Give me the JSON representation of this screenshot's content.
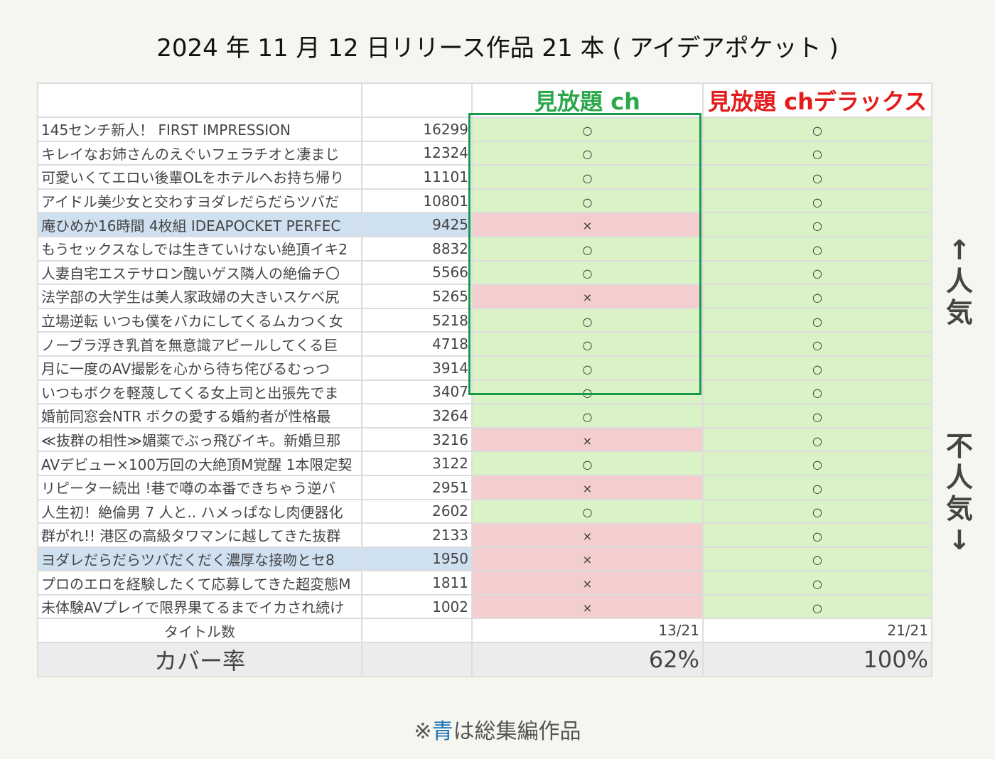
{
  "title": "2024 年 11 月 12 日リリース作品 21 本 ( アイデアポケット )",
  "columns": {
    "ch": "見放題 ch",
    "deluxe": "見放題 chデラックス"
  },
  "rows": [
    {
      "title": "145センチ新人！ FIRST IMPRESSION",
      "count": "16299",
      "ch": "○",
      "deluxe": "○",
      "highlight": false
    },
    {
      "title": "キレイなお姉さんのえぐいフェラチオと凄まじ",
      "count": "12324",
      "ch": "○",
      "deluxe": "○",
      "highlight": false
    },
    {
      "title": "可愛いくてエロい後輩OLをホテルへお持ち帰り",
      "count": "11101",
      "ch": "○",
      "deluxe": "○",
      "highlight": false
    },
    {
      "title": "アイドル美少女と交わすヨダレだらだらツバだ",
      "count": "10801",
      "ch": "○",
      "deluxe": "○",
      "highlight": false
    },
    {
      "title": "庵ひめか16時間 4枚組 IDEAPOCKET PERFEC",
      "count": "9425",
      "ch": "×",
      "deluxe": "○",
      "highlight": true
    },
    {
      "title": "もうセックスなしでは生きていけない絶頂イキ2",
      "count": "8832",
      "ch": "○",
      "deluxe": "○",
      "highlight": false
    },
    {
      "title": "人妻自宅エステサロン醜いゲス隣人の絶倫チ〇",
      "count": "5566",
      "ch": "○",
      "deluxe": "○",
      "highlight": false
    },
    {
      "title": "法学部の大学生は美人家政婦の大きいスケベ尻",
      "count": "5265",
      "ch": "×",
      "deluxe": "○",
      "highlight": false
    },
    {
      "title": "立場逆転 いつも僕をバカにしてくるムカつく女",
      "count": "5218",
      "ch": "○",
      "deluxe": "○",
      "highlight": false
    },
    {
      "title": "ノーブラ浮き乳首を無意識アピールしてくる巨",
      "count": "4718",
      "ch": "○",
      "deluxe": "○",
      "highlight": false
    },
    {
      "title": "月に一度のAV撮影を心から待ち侘びるむっつ",
      "count": "3914",
      "ch": "○",
      "deluxe": "○",
      "highlight": false
    },
    {
      "title": "いつもボクを軽蔑してくる女上司と出張先でま",
      "count": "3407",
      "ch": "○",
      "deluxe": "○",
      "highlight": false
    },
    {
      "title": "婚前同窓会NTR ボクの愛する婚約者が性格最",
      "count": "3264",
      "ch": "○",
      "deluxe": "○",
      "highlight": false
    },
    {
      "title": "≪抜群の相性≫媚薬でぶっ飛びイキ。新婚旦那",
      "count": "3216",
      "ch": "×",
      "deluxe": "○",
      "highlight": false
    },
    {
      "title": "AVデビュー×100万回の大絶頂M覚醒 1本限定契",
      "count": "3122",
      "ch": "○",
      "deluxe": "○",
      "highlight": false
    },
    {
      "title": "リピーター続出 !巷で噂の本番できちゃう逆バ",
      "count": "2951",
      "ch": "×",
      "deluxe": "○",
      "highlight": false
    },
    {
      "title": "人生初！絶倫男 7 人と.. ハメっぱなし肉便器化",
      "count": "2602",
      "ch": "○",
      "deluxe": "○",
      "highlight": false
    },
    {
      "title": "群がれ!! 港区の高級タワマンに越してきた抜群",
      "count": "2133",
      "ch": "×",
      "deluxe": "○",
      "highlight": false
    },
    {
      "title": "ヨダレだらだらツバだくだく濃厚な接吻とセ8",
      "count": "1950",
      "ch": "×",
      "deluxe": "○",
      "highlight": true
    },
    {
      "title": "プロのエロを経験したくて応募してきた超変態M",
      "count": "1811",
      "ch": "×",
      "deluxe": "○",
      "highlight": false
    },
    {
      "title": "未体験AVプレイで限界果てるまでイカされ続け",
      "count": "1002",
      "ch": "×",
      "deluxe": "○",
      "highlight": false
    }
  ],
  "summary": {
    "titles_label": "タイトル数",
    "ch_titles": "13/21",
    "deluxe_titles": "21/21",
    "rate_label": "カバー率",
    "ch_rate": "62%",
    "deluxe_rate": "100%"
  },
  "side": {
    "popular": "↑ 人 気",
    "unpopular": "不 人 気 ↓"
  },
  "note": {
    "prefix": "※",
    "blue": "青",
    "suffix": "は総集編作品"
  },
  "colors": {
    "ch": "#2aa84a",
    "deluxe": "#e31b1b",
    "available": "#d9f2c6",
    "unavailable": "#f4cdcf",
    "compilation": "#cfe0f0",
    "note_blue": "#1a6fb5"
  }
}
